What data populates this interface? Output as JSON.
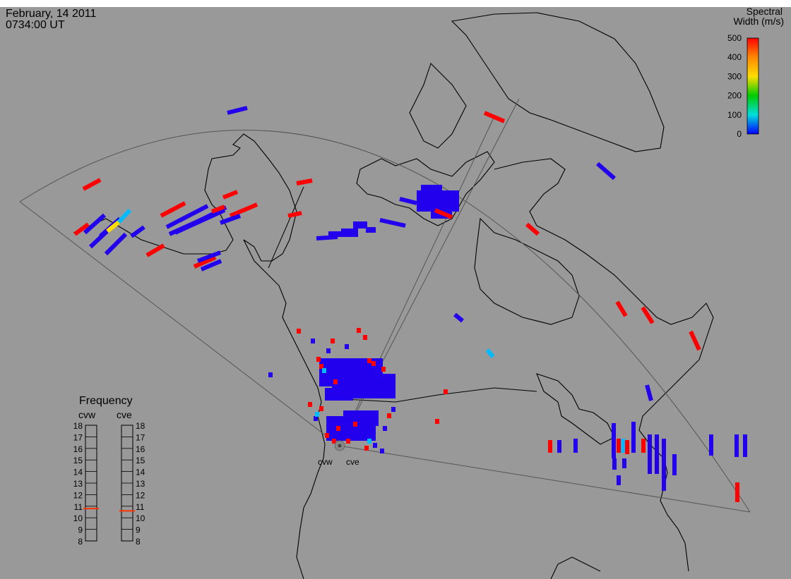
{
  "header": {
    "date": "February, 14 2011",
    "time": "0734:00 UT"
  },
  "colorbar": {
    "title_line1": "Spectral",
    "title_line2": "Width (m/s)",
    "ticks": [
      "500",
      "400",
      "300",
      "200",
      "100",
      "0"
    ],
    "scale_colors": [
      "#ff0000",
      "#ff8800",
      "#ffdd00",
      "#00cc00",
      "#00dddd",
      "#0000ff"
    ]
  },
  "frequency_panel": {
    "title": "Frequency",
    "radars": [
      "cvw",
      "cve"
    ],
    "scale": [
      "18",
      "17",
      "16",
      "15",
      "14",
      "13",
      "12",
      "11",
      "10",
      "9",
      "8"
    ],
    "cvw_freq_mhz": 10.8,
    "cve_freq_mhz": 10.6
  },
  "radar_labels": [
    "cvw",
    "cve"
  ],
  "colors": {
    "background": "#999999",
    "low_width": "#2200ee",
    "high_width": "#ff0000",
    "mid_width": "#00bbff",
    "yellow": "#ffdd00"
  }
}
